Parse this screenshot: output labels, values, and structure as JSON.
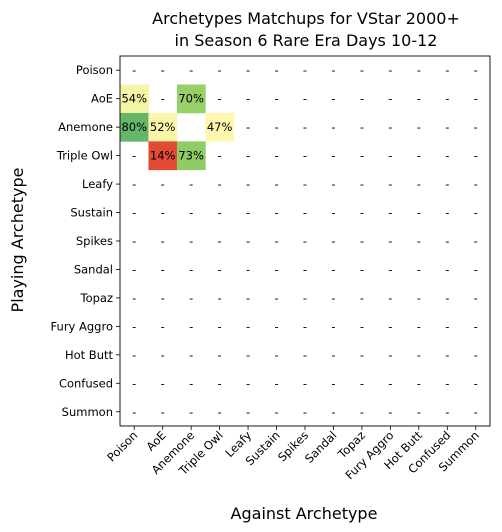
{
  "chart_data": {
    "type": "heatmap",
    "title": [
      "Archetypes Matchups for VStar 2000+",
      "in Season 6 Rare Era Days 10-12"
    ],
    "xlabel": "Against Archetype",
    "ylabel": "Playing Archetype",
    "rows": [
      "Poison",
      "AoE",
      "Anemone",
      "Triple Owl",
      "Leafy",
      "Sustain",
      "Spikes",
      "Sandal",
      "Topaz",
      "Fury Aggro",
      "Hot Butt",
      "Confused",
      "Summon"
    ],
    "columns": [
      "Poison",
      "AoE",
      "Anemone",
      "Triple Owl",
      "Leafy",
      "Sustain",
      "Spikes",
      "Sandal",
      "Topaz",
      "Fury Aggro",
      "Hot Butt",
      "Confused",
      "Summon"
    ],
    "cells": [
      [
        "-",
        "-",
        "-",
        "-",
        "-",
        "-",
        "-",
        "-",
        "-",
        "-",
        "-",
        "-",
        "-"
      ],
      [
        "54%",
        "-",
        "70%",
        "-",
        "-",
        "-",
        "-",
        "-",
        "-",
        "-",
        "-",
        "-",
        "-"
      ],
      [
        "80%",
        "52%",
        "",
        "47%",
        "-",
        "-",
        "-",
        "-",
        "-",
        "-",
        "-",
        "-",
        "-"
      ],
      [
        "-",
        "14%",
        "73%",
        "-",
        "-",
        "-",
        "-",
        "-",
        "-",
        "-",
        "-",
        "-",
        "-"
      ],
      [
        "-",
        "-",
        "-",
        "-",
        "-",
        "-",
        "-",
        "-",
        "-",
        "-",
        "-",
        "-",
        "-"
      ],
      [
        "-",
        "-",
        "-",
        "-",
        "-",
        "-",
        "-",
        "-",
        "-",
        "-",
        "-",
        "-",
        "-"
      ],
      [
        "-",
        "-",
        "-",
        "-",
        "-",
        "-",
        "-",
        "-",
        "-",
        "-",
        "-",
        "-",
        "-"
      ],
      [
        "-",
        "-",
        "-",
        "-",
        "-",
        "-",
        "-",
        "-",
        "-",
        "-",
        "-",
        "-",
        "-"
      ],
      [
        "-",
        "-",
        "-",
        "-",
        "-",
        "-",
        "-",
        "-",
        "-",
        "-",
        "-",
        "-",
        "-"
      ],
      [
        "-",
        "-",
        "-",
        "-",
        "-",
        "-",
        "-",
        "-",
        "-",
        "-",
        "-",
        "-",
        "-"
      ],
      [
        "-",
        "-",
        "-",
        "-",
        "-",
        "-",
        "-",
        "-",
        "-",
        "-",
        "-",
        "-",
        "-"
      ],
      [
        "-",
        "-",
        "-",
        "-",
        "-",
        "-",
        "-",
        "-",
        "-",
        "-",
        "-",
        "-",
        "-"
      ],
      [
        "-",
        "-",
        "-",
        "-",
        "-",
        "-",
        "-",
        "-",
        "-",
        "-",
        "-",
        "-",
        "-"
      ]
    ],
    "colors": {
      "14%": "#e34a33",
      "47%": "#fff7b0",
      "52%": "#fbf5aa",
      "54%": "#f4f5a6",
      "70%": "#98d068",
      "73%": "#8fcc66",
      "80%": "#66b66a",
      "empty": "#ffffff"
    },
    "colormap": "RdYlGn",
    "grid": false,
    "legend": "none"
  }
}
